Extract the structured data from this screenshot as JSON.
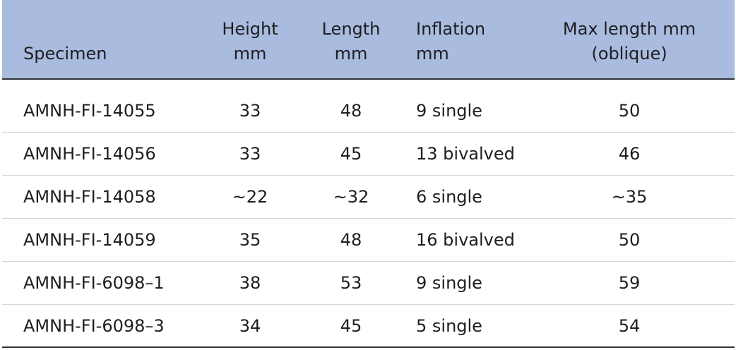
{
  "table": {
    "header": [
      [
        "Specimen"
      ],
      [
        "Height",
        "mm"
      ],
      [
        "Length",
        "mm"
      ],
      [
        "Inflation",
        "mm"
      ],
      [
        "Max length mm",
        "(oblique)"
      ]
    ],
    "rows": [
      [
        "AMNH-FI-14055",
        "33",
        "48",
        "9 single",
        "50"
      ],
      [
        "AMNH-FI-14056",
        "33",
        "45",
        "13 bivalved",
        "46"
      ],
      [
        "AMNH-FI-14058",
        "~22",
        "~32",
        "6 single",
        "~35"
      ],
      [
        "AMNH-FI-14059",
        "35",
        "48",
        "16 bivalved",
        "50"
      ],
      [
        "AMNH-FI-6098–1",
        "38",
        "53",
        "9 single",
        "59"
      ],
      [
        "AMNH-FI-6098–3",
        "34",
        "45",
        "5 single",
        "54"
      ]
    ]
  }
}
